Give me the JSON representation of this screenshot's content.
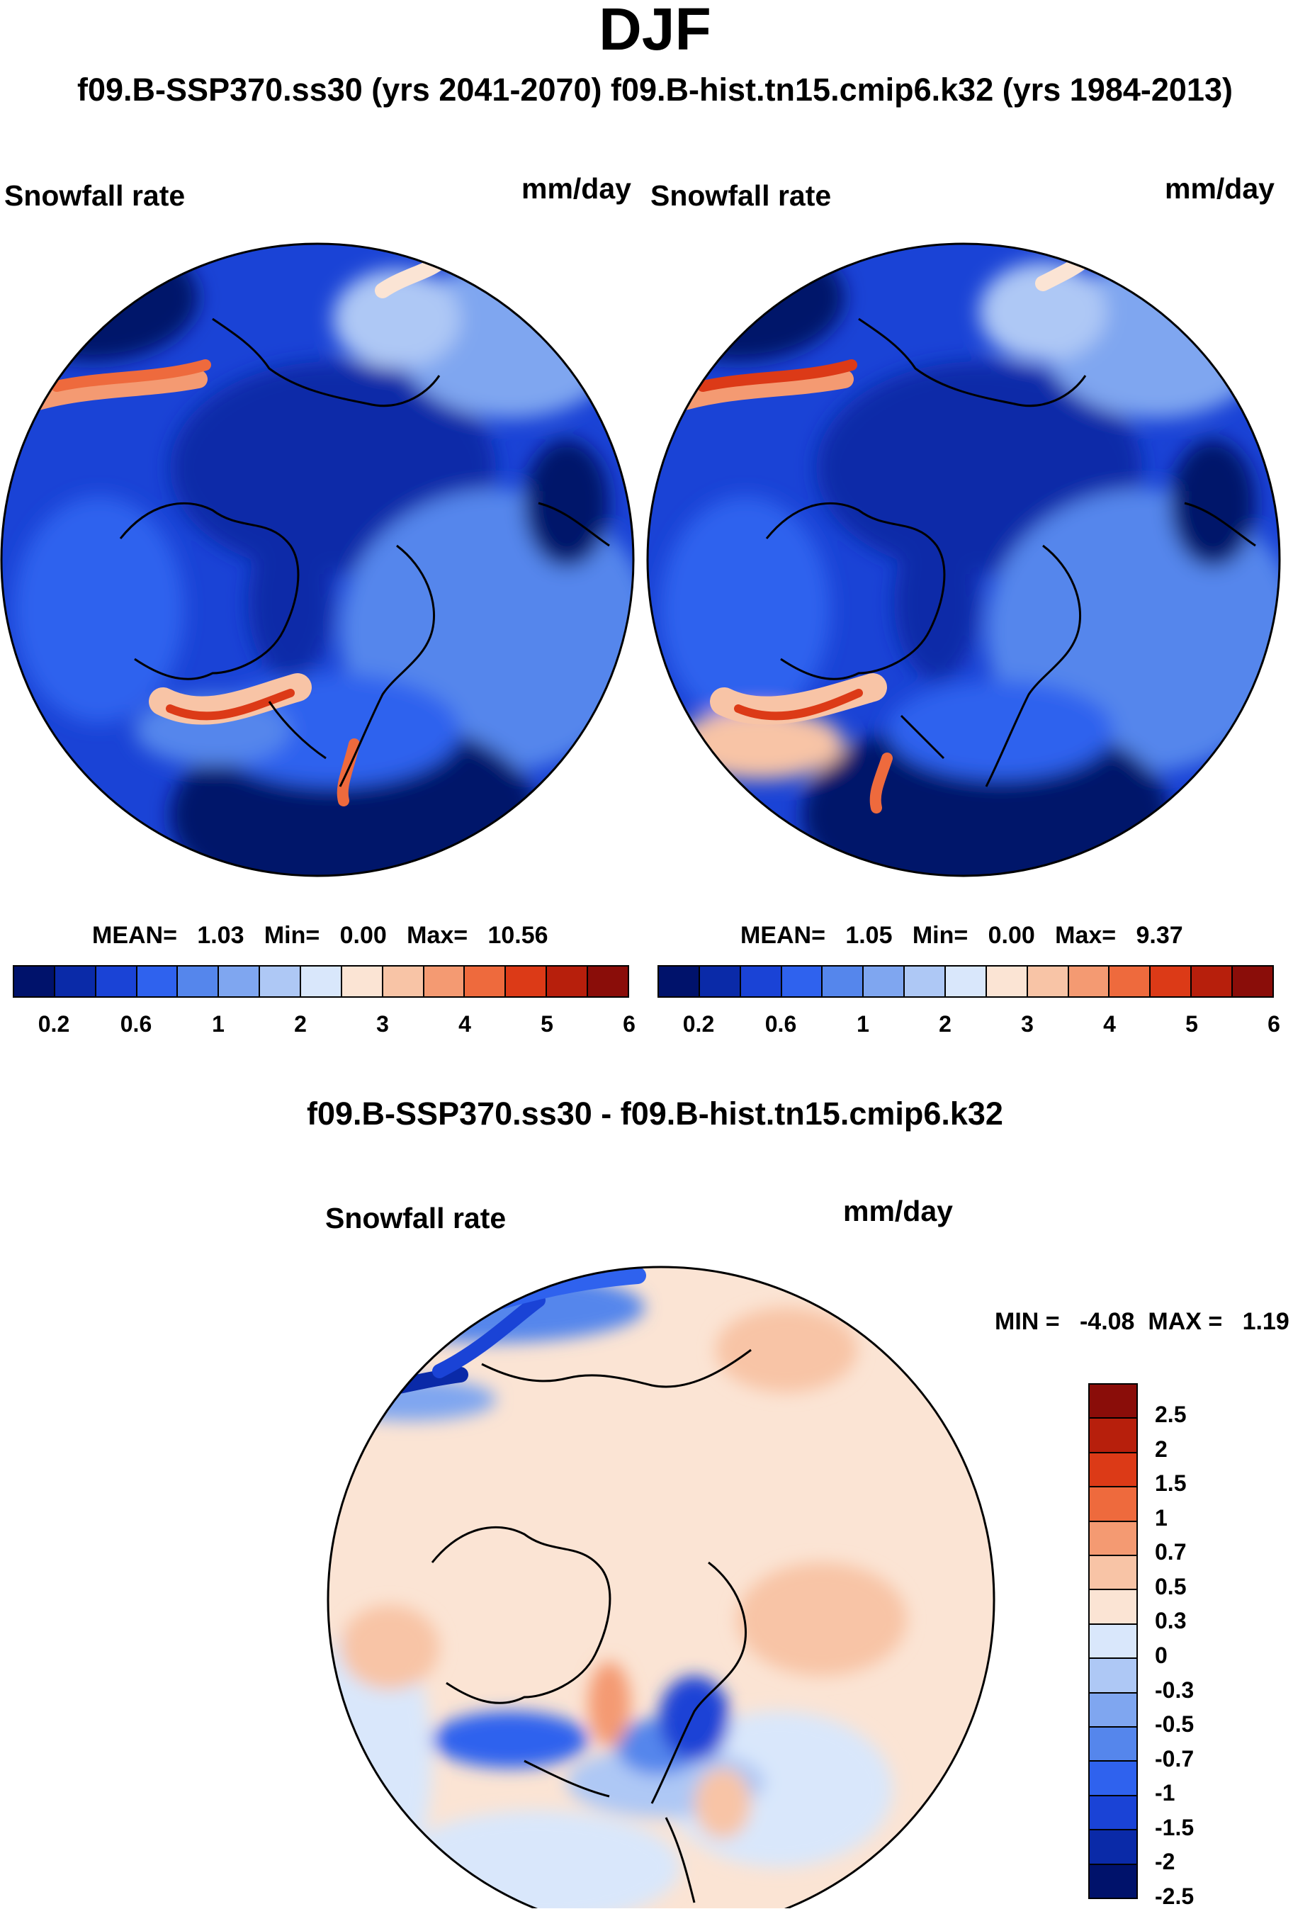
{
  "title": "DJF",
  "subtitle": "f09.B-SSP370.ss30 (yrs 2041-2070)  f09.B-hist.tn15.cmip6.k32 (yrs 1984-2013)",
  "panels": [
    {
      "variable": "Snowfall rate",
      "units": "mm/day",
      "stats": {
        "mean_label": "MEAN=",
        "mean": "1.03",
        "min_label": "Min=",
        "min": "0.00",
        "max_label": "Max=",
        "max": "10.56"
      }
    },
    {
      "variable": "Snowfall rate",
      "units": "mm/day",
      "stats": {
        "mean_label": "MEAN=",
        "mean": "1.05",
        "min_label": "Min=",
        "min": "0.00",
        "max_label": "Max=",
        "max": "9.37"
      }
    }
  ],
  "colorbar": {
    "colors": [
      "#00126b",
      "#0a2aa8",
      "#1a43d6",
      "#2f62ee",
      "#5586ec",
      "#7fa6f0",
      "#aec8f5",
      "#d9e7fb",
      "#fbe4d4",
      "#f8c4a6",
      "#f49a72",
      "#ee6a3d",
      "#dc3a17",
      "#b71f0c",
      "#8a0d09"
    ],
    "tick_labels": [
      "0.2",
      "0.6",
      "1",
      "2",
      "3",
      "4",
      "5",
      "6"
    ]
  },
  "diff_panel": {
    "title": "f09.B-SSP370.ss30 - f09.B-hist.tn15.cmip6.k32",
    "variable": "Snowfall rate",
    "units": "mm/day",
    "stats": {
      "min_label": "MIN =",
      "min": "-4.08",
      "max_label": "MAX =",
      "max": "1.19"
    }
  },
  "diff_colorbar": {
    "colors_top_to_bottom": [
      "#8a0d09",
      "#b71f0c",
      "#dc3a17",
      "#ee6a3d",
      "#f49a72",
      "#f8c4a6",
      "#fbe4d4",
      "#d9e7fb",
      "#aec8f5",
      "#7fa6f0",
      "#5586ec",
      "#2f62ee",
      "#1a43d6",
      "#0a2aa8",
      "#00126b"
    ],
    "tick_labels": [
      "2.5",
      "2",
      "1.5",
      "1",
      "0.7",
      "0.5",
      "0.3",
      "0",
      "-0.3",
      "-0.5",
      "-0.7",
      "-1",
      "-1.5",
      "-2",
      "-2.5"
    ]
  },
  "chart_data": [
    {
      "type": "heatmap",
      "title": "Snowfall rate",
      "units": "mm/day",
      "projection": "north polar stereographic",
      "mean": 1.03,
      "min": 0.0,
      "max": 10.56,
      "levels": [
        0.2,
        0.4,
        0.6,
        0.8,
        1,
        1.5,
        2,
        2.5,
        3,
        3.5,
        4,
        4.5,
        5,
        5.5,
        6
      ]
    },
    {
      "type": "heatmap",
      "title": "Snowfall rate",
      "units": "mm/day",
      "projection": "north polar stereographic",
      "mean": 1.05,
      "min": 0.0,
      "max": 9.37,
      "levels": [
        0.2,
        0.4,
        0.6,
        0.8,
        1,
        1.5,
        2,
        2.5,
        3,
        3.5,
        4,
        4.5,
        5,
        5.5,
        6
      ]
    },
    {
      "type": "heatmap",
      "title": "f09.B-SSP370.ss30 - f09.B-hist.tn15.cmip6.k32",
      "units": "mm/day",
      "projection": "north polar stereographic",
      "min": -4.08,
      "max": 1.19,
      "levels": [
        -2.5,
        -2,
        -1.5,
        -1,
        -0.7,
        -0.5,
        -0.3,
        0,
        0.3,
        0.5,
        0.7,
        1,
        1.5,
        2,
        2.5
      ]
    }
  ]
}
